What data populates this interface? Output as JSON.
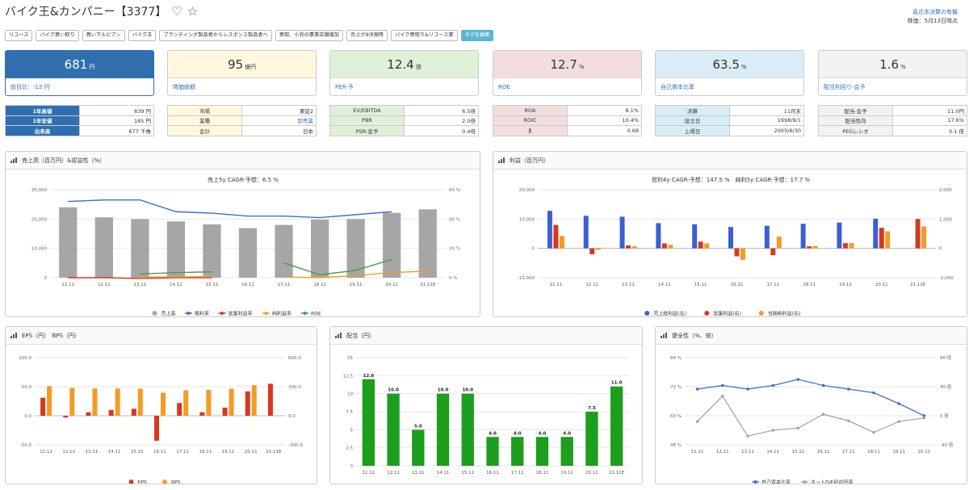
{
  "header": {
    "title": "バイク王&カンパニー【3377】",
    "icons": [
      "heart-outline-icon",
      "star-outline-icon"
    ],
    "heart_glyph": "♡",
    "star_glyph": "☆",
    "latest_link": "直近本決算の有報",
    "date_note": "株価：5月13日時点"
  },
  "tags": [
    {
      "label": "リユース",
      "style": "plain"
    },
    {
      "label": "バイク買い取り",
      "style": "plain"
    },
    {
      "label": "買い下ルビアン",
      "style": "plain"
    },
    {
      "label": "バイク王",
      "style": "plain"
    },
    {
      "label": "ブランディング製品者からレスポンス製品者へ",
      "style": "plain"
    },
    {
      "label": "買取、小売の事業店舗増加",
      "style": "plain"
    },
    {
      "label": "売上が9決預等",
      "style": "plain"
    },
    {
      "label": "バイク買取り&リユース業",
      "style": "plain"
    },
    {
      "label": "タグを編集",
      "style": "blue"
    }
  ],
  "metric_cards": {
    "price": {
      "value": "681",
      "unit": "円",
      "label": "前日比：-12 円"
    },
    "market_cap": {
      "value": "95",
      "unit": "億円",
      "label": "時価総額"
    },
    "per": {
      "value": "12.4",
      "unit": "倍",
      "label": "PER-予"
    },
    "roe": {
      "value": "12.7",
      "unit": "%",
      "label": "ROE"
    },
    "equity_ratio": {
      "value": "63.5",
      "unit": "%",
      "label": "自己資本比率"
    },
    "dividend_yield": {
      "value": "1.6",
      "unit": "%",
      "label": "配当利回り-会予"
    }
  },
  "info_tables": {
    "price_range": [
      {
        "k": "1年高値",
        "v": "839 円"
      },
      {
        "k": "1年安値",
        "v": "185 円"
      },
      {
        "k": "出来高",
        "v": "677 千株"
      }
    ],
    "market": [
      {
        "k": "市場",
        "v": "東証2"
      },
      {
        "k": "業種",
        "v": "卸売業"
      },
      {
        "k": "会計",
        "v": "日本"
      }
    ],
    "valuation": [
      {
        "k": "EV/EBITDA",
        "v": "6.5倍"
      },
      {
        "k": "PBR",
        "v": "2.0倍"
      },
      {
        "k": "PSR-会予",
        "v": "0.4倍"
      }
    ],
    "returns": [
      {
        "k": "ROA",
        "v": "8.1%"
      },
      {
        "k": "ROIC",
        "v": "10.4%"
      },
      {
        "k": "β",
        "v": "0.68"
      }
    ],
    "company": [
      {
        "k": "決算",
        "v": "11月末"
      },
      {
        "k": "設立日",
        "v": "1998/9/1"
      },
      {
        "k": "上場日",
        "v": "2005/6/30"
      }
    ],
    "dividend": [
      {
        "k": "配当-会予",
        "v": "11.0円"
      },
      {
        "k": "配当性向",
        "v": "17.6%"
      },
      {
        "k": "PEGレシオ",
        "v": "0.1 倍"
      }
    ]
  },
  "chart_data": [
    {
      "id": "sales",
      "type": "bar",
      "title": "売上高（百万円）&収益性（%）",
      "subtitle": "売上5y CAGR-予想：6.5 %",
      "categories": [
        "11.11",
        "12.11",
        "13.11",
        "14.11",
        "15.11",
        "16.11",
        "17.11",
        "18.11",
        "19.11",
        "20.11",
        "21.11E"
      ],
      "series": [
        {
          "name": "売上高",
          "kind": "bar",
          "axis": "left",
          "color": "#a6a6a6",
          "values": [
            24000,
            20600,
            20000,
            19200,
            18200,
            16900,
            18000,
            19800,
            20000,
            22100,
            23300
          ]
        },
        {
          "name": "粗利率",
          "kind": "line",
          "axis": "right",
          "color": "#3b6fd4",
          "values": [
            52,
            53,
            53,
            45,
            44,
            42,
            42,
            41,
            43,
            45,
            null
          ]
        },
        {
          "name": "営業利益率",
          "kind": "line",
          "axis": "right",
          "color": "#d9381e",
          "values": [
            0,
            0,
            -0.5,
            0,
            0,
            null,
            null,
            null,
            null,
            null,
            null
          ]
        },
        {
          "name": "純利益率",
          "kind": "line",
          "axis": "right",
          "color": "#f59a23",
          "values": [
            null,
            null,
            0.5,
            0.5,
            0.8,
            null,
            0.5,
            0,
            1.5,
            3.5,
            4.5
          ]
        },
        {
          "name": "ROE",
          "kind": "line",
          "axis": "right",
          "color": "#43a047",
          "values": [
            null,
            null,
            2.5,
            3.5,
            4,
            null,
            10,
            2,
            5,
            12.5,
            null
          ]
        }
      ],
      "ylim": [
        0,
        30000
      ],
      "yticks": [
        0,
        10000,
        20000,
        30000
      ],
      "yticks_labels": [
        "0",
        "10,000",
        "20,000",
        "30,000"
      ],
      "y2lim": [
        0,
        60
      ],
      "y2ticks_labels": [
        "0 %",
        "20 %",
        "40 %",
        "60 %"
      ],
      "legend": "bottom"
    },
    {
      "id": "profit",
      "type": "bar",
      "title": "利益（百万円）",
      "subtitle": "営利4y CAGR-予想：147.5 %　純利5y CAGR-予想：17.7 %",
      "categories": [
        "11.11",
        "12.11",
        "13.11",
        "14.11",
        "15.11",
        "16.11",
        "17.11",
        "18.11",
        "19.11",
        "20.11",
        "21.11E"
      ],
      "series": [
        {
          "name": "売上総利益(左)",
          "axis": "left",
          "color": "#3b5fd4",
          "values": [
            12800,
            11100,
            10800,
            8600,
            8200,
            7300,
            7700,
            8400,
            8800,
            10100,
            null
          ]
        },
        {
          "name": "営業利益(右)",
          "axis": "right",
          "color": "#d9381e",
          "values": [
            800,
            -200,
            100,
            170,
            230,
            -270,
            -230,
            70,
            180,
            700,
            1000
          ]
        },
        {
          "name": "当期純利益(右)",
          "axis": "right",
          "color": "#f59a23",
          "values": [
            420,
            -50,
            70,
            120,
            170,
            -390,
            400,
            80,
            180,
            580,
            750
          ]
        }
      ],
      "ylim": [
        -10000,
        20000
      ],
      "yticks_labels": [
        "-10,000",
        "0",
        "10,000",
        "20,000"
      ],
      "y2lim": [
        -1000,
        2000
      ],
      "y2ticks_labels": [
        "-1,000",
        "0",
        "1,000",
        "2,000"
      ],
      "legend": "bottom"
    },
    {
      "id": "eps",
      "type": "bar",
      "title": "EPS（円）　BPS（円）",
      "categories": [
        "11.11",
        "12.11",
        "13.11",
        "14.11",
        "15.11",
        "16.11",
        "17.11",
        "18.11",
        "19.11",
        "20.11",
        "21.11E"
      ],
      "series": [
        {
          "name": "EPS",
          "axis": "left",
          "color": "#d9381e",
          "values": [
            31,
            -3,
            6,
            10,
            12,
            -43,
            22,
            6,
            14,
            42,
            55
          ]
        },
        {
          "name": "BPS",
          "axis": "right",
          "color": "#f59a23",
          "values": [
            306,
            288,
            281,
            282,
            280,
            238,
            262,
            266,
            280,
            315,
            null
          ]
        }
      ],
      "ylim": [
        -50,
        100
      ],
      "yticks_labels": [
        "-50.0",
        "0.0",
        "50.0",
        "100.0"
      ],
      "y2lim": [
        -300,
        600
      ],
      "y2ticks_labels": [
        "-300.0",
        "0.0",
        "300.0",
        "600.0"
      ],
      "legend": "bottom"
    },
    {
      "id": "dividend",
      "type": "bar",
      "title": "配当（円）",
      "categories": [
        "11.11",
        "12.11",
        "13.11",
        "14.11",
        "15.11",
        "16.11",
        "17.11",
        "18.11",
        "19.11",
        "20.11",
        "21.11E"
      ],
      "series": [
        {
          "name": "配当",
          "color": "#1e9e1e",
          "values": [
            12,
            10,
            5,
            10,
            10,
            4,
            4,
            4,
            4,
            7.5,
            11
          ]
        }
      ],
      "data_labels": [
        "12.0",
        "10.0",
        "5.0",
        "10.0",
        "10.0",
        "4.0",
        "4.0",
        "4.0",
        "4.0",
        "7.5",
        "11.0"
      ],
      "ylim": [
        0,
        15
      ],
      "yticks_labels": [
        "0",
        "2.5",
        "5",
        "7.5",
        "10",
        "12.5",
        "15"
      ]
    },
    {
      "id": "health",
      "type": "line",
      "title": "健全性（%、倍）",
      "categories": [
        "11.11",
        "12.11",
        "13.11",
        "14.11",
        "15.11",
        "16.11",
        "17.11",
        "18.11",
        "19.11",
        "20.11"
      ],
      "series": [
        {
          "name": "自己資本比率",
          "axis": "left",
          "color": "#3b6fd4",
          "values": [
            71,
            72.5,
            71,
            72.5,
            75,
            72.5,
            71,
            69.5,
            65,
            60
          ]
        },
        {
          "name": "ネットD/E利益倍率",
          "axis": "right",
          "color": "#a6a6a6",
          "values": [
            -8,
            27,
            -28,
            -20,
            -17,
            2,
            -7,
            -23,
            -8,
            -3
          ]
        }
      ],
      "ylim": [
        48,
        84
      ],
      "yticks_labels": [
        "48 %",
        "60 %",
        "72 %",
        "84 %"
      ],
      "y2lim": [
        -40,
        80
      ],
      "y2ticks_labels": [
        "-40 倍",
        "0 倍",
        "40 倍",
        "80 倍"
      ],
      "legend": "bottom"
    }
  ]
}
